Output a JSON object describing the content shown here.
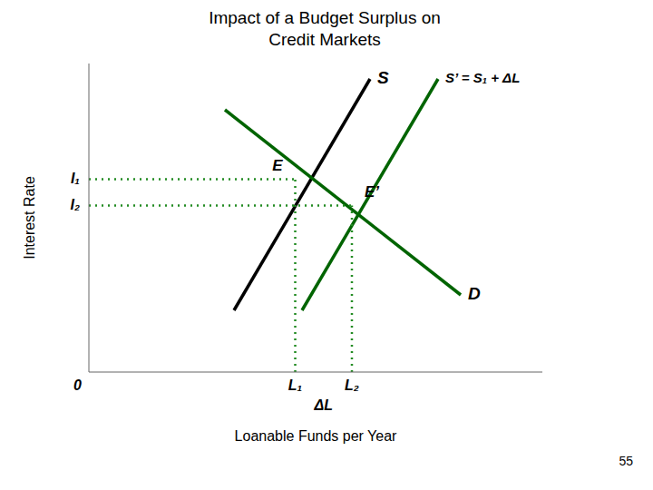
{
  "chart_data": {
    "type": "line",
    "title": "Impact of a Budget Surplus on\nCredit Markets",
    "x_label": "Loanable Funds per Year",
    "y_label": "Interest Rate",
    "xlim": [
      0,
      10
    ],
    "ylim": [
      0,
      10
    ],
    "xticks": [],
    "yticks": [],
    "tick_labels": false,
    "grid": false,
    "series": [
      {
        "name": "S",
        "color": "#000000",
        "x": [
          3.2,
          6.2
        ],
        "values": [
          2.0,
          9.5
        ]
      },
      {
        "name": "S’ = S₁ + ΔL",
        "color": "#006400",
        "x": [
          4.7,
          7.7
        ],
        "values": [
          2.0,
          9.5
        ]
      },
      {
        "name": "D",
        "color": "#006400",
        "x": [
          3.0,
          8.2
        ],
        "values": [
          8.5,
          2.5
        ]
      },
      {
        "color": "#228B22",
        "line_style": "dotted",
        "x": [
          0,
          4.55
        ],
        "values": [
          6.25,
          6.25
        ]
      },
      {
        "color": "#228B22",
        "line_style": "dotted",
        "x": [
          0,
          5.8
        ],
        "values": [
          5.4,
          5.4
        ]
      },
      {
        "color": "#228B22",
        "line_style": "dotted",
        "x": [
          4.55,
          4.55
        ],
        "values": [
          0,
          6.25
        ]
      },
      {
        "color": "#228B22",
        "line_style": "dotted",
        "x": [
          5.8,
          5.8
        ],
        "values": [
          0,
          5.4
        ]
      }
    ],
    "point_labels": [
      {
        "text": "E",
        "x": 4.55,
        "y": 6.25
      },
      {
        "text": "E’",
        "x": 5.8,
        "y": 5.4
      }
    ],
    "y_axis_labels": [
      {
        "value": 6.25,
        "label": "I₁"
      },
      {
        "value": 5.4,
        "label": "I₂"
      }
    ],
    "x_axis_labels": [
      {
        "value": 0,
        "label": "0"
      },
      {
        "value": 4.55,
        "label": "L₁"
      },
      {
        "value": 5.8,
        "label": "L₂"
      }
    ],
    "annotations": [
      {
        "text": "ΔL",
        "x": 5.175,
        "y": 0
      }
    ],
    "footnote": "55"
  }
}
